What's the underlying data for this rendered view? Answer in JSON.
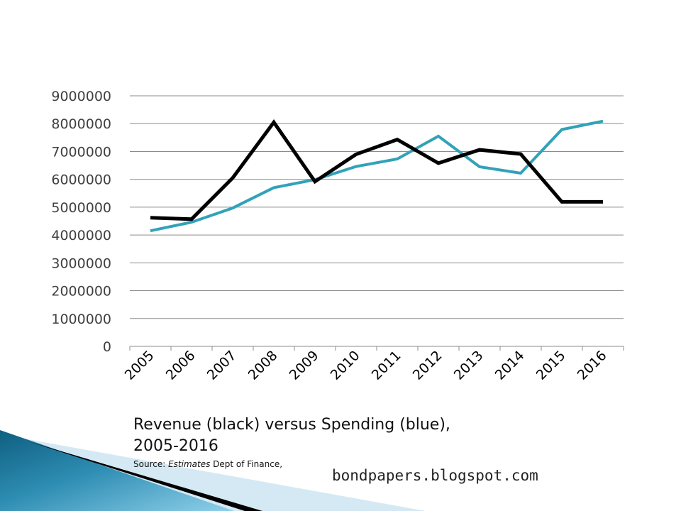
{
  "chart_data": {
    "type": "line",
    "x": [
      "2005",
      "2006",
      "2007",
      "2008",
      "2009",
      "2010",
      "2011",
      "2012",
      "2013",
      "2014",
      "2015",
      "2016"
    ],
    "series": [
      {
        "name": "",
        "color": "#000000",
        "values": [
          4620000,
          4570000,
          6050000,
          8050000,
          5920000,
          6900000,
          7430000,
          6580000,
          7060000,
          6910000,
          5190000,
          5190000
        ]
      },
      {
        "name": "",
        "color": "#31A2B8",
        "values": [
          4150000,
          4460000,
          4970000,
          5700000,
          5990000,
          6460000,
          6730000,
          7550000,
          6450000,
          6220000,
          7790000,
          8090000
        ]
      }
    ],
    "yticks": [
      "0",
      "1000000",
      "2000000",
      "3000000",
      "4000000",
      "5000000",
      "6000000",
      "7000000",
      "8000000",
      "9000000"
    ],
    "ylim": [
      0,
      9000000
    ],
    "grid": true,
    "title": "",
    "xlabel": "",
    "ylabel": ""
  },
  "caption": {
    "title_line1": "Revenue (black) versus Spending (blue),",
    "title_line2": "2005-2016",
    "source_label": "Source: ",
    "source_italic": "Estimates",
    "source_rest": " Dept of Finance,"
  },
  "blog_url": "bondpapers.blogspot.com",
  "decor": {
    "swoosh_dark": "#0E5F80",
    "swoosh_light": "#7FC6E4",
    "swoosh_pale": "#D4E9F3",
    "swoosh_black": "#000000"
  }
}
